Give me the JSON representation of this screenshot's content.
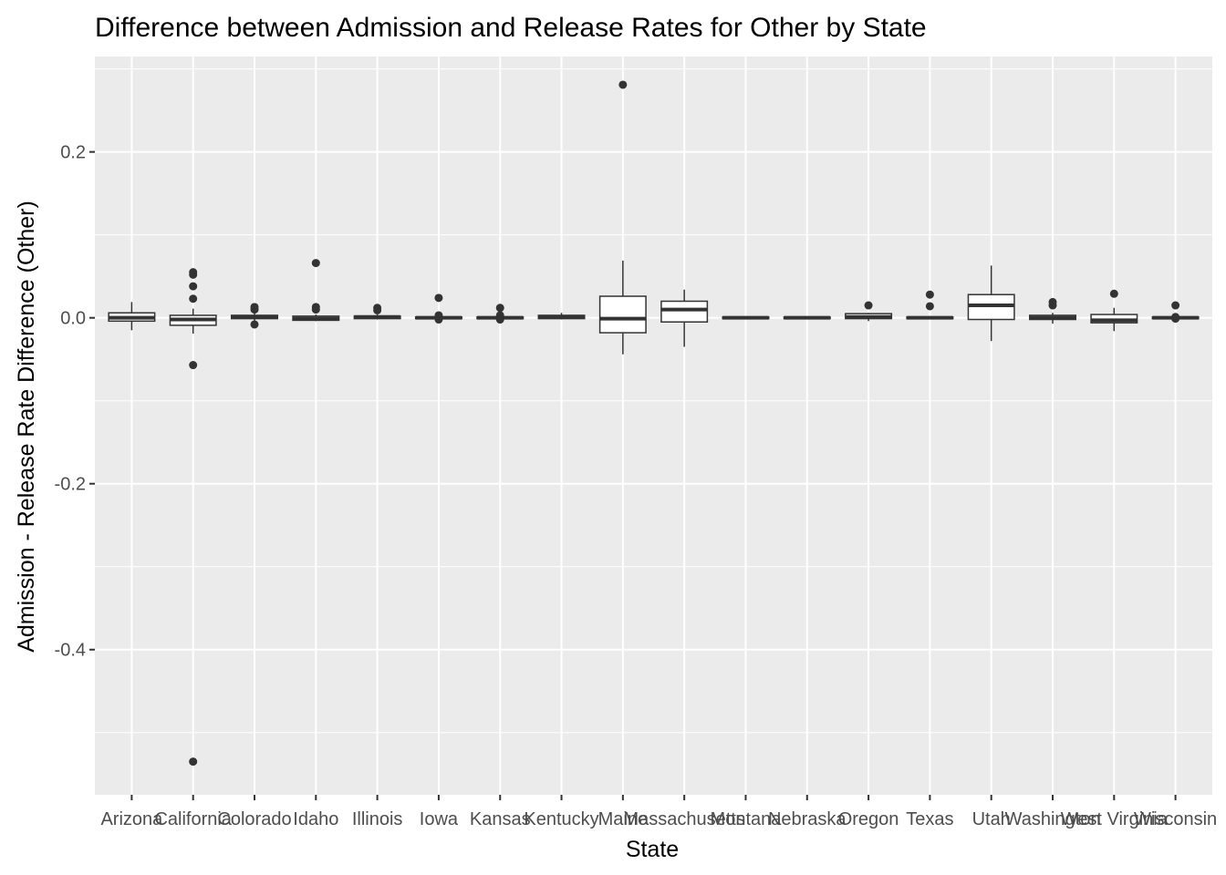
{
  "chart_data": {
    "type": "boxplot",
    "title": "Difference between Admission and Release Rates for Other by State",
    "xlabel": "State",
    "ylabel": "Admission - Release Rate Difference (Other)",
    "ylim": [
      -0.575,
      0.315
    ],
    "y_ticks": [
      0.2,
      0.0,
      -0.2,
      -0.4
    ],
    "y_tick_labels": [
      "0.2",
      "0.0",
      "-0.2",
      "-0.4"
    ],
    "grid": true,
    "legend": "none",
    "colors": {
      "panel": "#ebebeb",
      "grid": "#ffffff",
      "box_fill": "#ffffff",
      "box_line": "#333333",
      "point": "#333333",
      "tick": "#333333"
    },
    "categories": [
      "Arizona",
      "California",
      "Colorado",
      "Idaho",
      "Illinois",
      "Iowa",
      "Kansas",
      "Kentucky",
      "Maine",
      "Massachusetts",
      "Montana",
      "Nebraska",
      "Oregon",
      "Texas",
      "Utah",
      "Washington",
      "West Virginia",
      "Wisconsin"
    ],
    "boxes": [
      {
        "q1": -0.004,
        "median": 0.0,
        "q3": 0.006,
        "whisker_low": -0.015,
        "whisker_high": 0.019,
        "outliers": []
      },
      {
        "q1": -0.009,
        "median": -0.002,
        "q3": 0.003,
        "whisker_low": -0.019,
        "whisker_high": 0.011,
        "outliers": [
          0.055,
          0.052,
          0.038,
          0.023,
          -0.057,
          -0.535
        ]
      },
      {
        "q1": -0.001,
        "median": 0.001,
        "q3": 0.003,
        "whisker_low": -0.004,
        "whisker_high": 0.006,
        "outliers": [
          0.013,
          0.01,
          -0.008
        ]
      },
      {
        "q1": -0.003,
        "median": -0.001,
        "q3": 0.002,
        "whisker_low": -0.004,
        "whisker_high": 0.004,
        "outliers": [
          0.066,
          0.013,
          0.01
        ]
      },
      {
        "q1": -0.001,
        "median": 0.001,
        "q3": 0.002,
        "whisker_low": -0.002,
        "whisker_high": 0.004,
        "outliers": [
          0.012,
          0.009
        ]
      },
      {
        "q1": -0.001,
        "median": 0.0,
        "q3": 0.001,
        "whisker_low": -0.002,
        "whisker_high": 0.002,
        "outliers": [
          0.024,
          0.003,
          -0.002
        ]
      },
      {
        "q1": -0.001,
        "median": 0.0,
        "q3": 0.001,
        "whisker_low": -0.002,
        "whisker_high": 0.002,
        "outliers": [
          0.012,
          0.003,
          -0.002
        ]
      },
      {
        "q1": -0.001,
        "median": 0.001,
        "q3": 0.003,
        "whisker_low": -0.002,
        "whisker_high": 0.006,
        "outliers": []
      },
      {
        "q1": -0.018,
        "median": -0.001,
        "q3": 0.026,
        "whisker_low": -0.044,
        "whisker_high": 0.069,
        "outliers": [
          0.281
        ]
      },
      {
        "q1": -0.005,
        "median": 0.01,
        "q3": 0.02,
        "whisker_low": -0.035,
        "whisker_high": 0.034,
        "outliers": []
      },
      {
        "q1": -0.001,
        "median": 0.0,
        "q3": 0.001,
        "whisker_low": -0.001,
        "whisker_high": 0.001,
        "outliers": []
      },
      {
        "q1": -0.001,
        "median": 0.0,
        "q3": 0.001,
        "whisker_low": -0.001,
        "whisker_high": 0.001,
        "outliers": []
      },
      {
        "q1": -0.001,
        "median": 0.001,
        "q3": 0.005,
        "whisker_low": -0.004,
        "whisker_high": 0.006,
        "outliers": [
          0.015
        ]
      },
      {
        "q1": -0.001,
        "median": 0.0,
        "q3": 0.001,
        "whisker_low": -0.002,
        "whisker_high": 0.002,
        "outliers": [
          0.028,
          0.014
        ]
      },
      {
        "q1": -0.002,
        "median": 0.015,
        "q3": 0.028,
        "whisker_low": -0.028,
        "whisker_high": 0.063,
        "outliers": []
      },
      {
        "q1": -0.002,
        "median": 0.0,
        "q3": 0.003,
        "whisker_low": -0.007,
        "whisker_high": 0.006,
        "outliers": [
          0.019,
          0.015
        ]
      },
      {
        "q1": -0.006,
        "median": -0.003,
        "q3": 0.004,
        "whisker_low": -0.016,
        "whisker_high": 0.012,
        "outliers": [
          0.029
        ]
      },
      {
        "q1": -0.001,
        "median": 0.0,
        "q3": 0.001,
        "whisker_low": -0.002,
        "whisker_high": 0.002,
        "outliers": [
          0.015,
          0.001,
          -0.001
        ]
      }
    ]
  }
}
